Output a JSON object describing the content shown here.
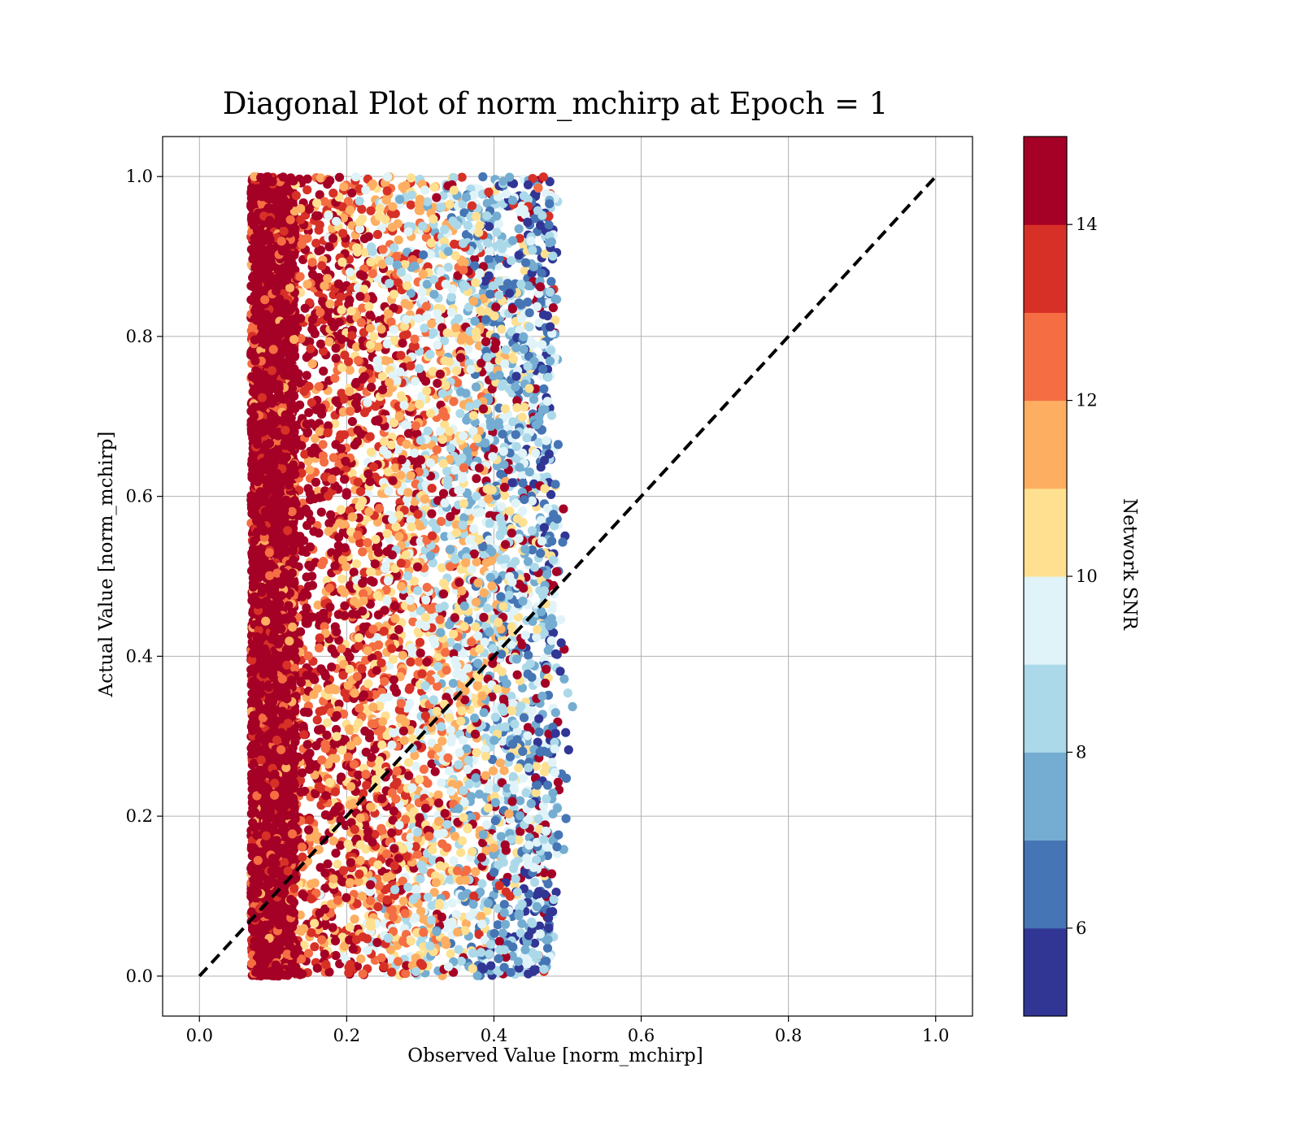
{
  "chart_data": {
    "type": "scatter",
    "title": "Diagonal Plot of norm_mchirp at Epoch = 1",
    "xlabel": "Observed Value [norm_mchirp]",
    "ylabel": "Actual Value [norm_mchirp]",
    "xlim": [
      -0.05,
      1.05
    ],
    "ylim": [
      -0.05,
      1.05
    ],
    "xticks": [
      "0.0",
      "0.2",
      "0.4",
      "0.6",
      "0.8",
      "1.0"
    ],
    "yticks": [
      "0.0",
      "0.2",
      "0.4",
      "0.6",
      "0.8",
      "1.0"
    ],
    "grid": true,
    "reference_line": {
      "x": [
        0.0,
        1.0
      ],
      "y": [
        0.0,
        1.0
      ],
      "style": "dashed",
      "color": "#000000"
    },
    "point_cloud": {
      "x_range": [
        0.07,
        0.51
      ],
      "y_range": [
        0.0,
        1.0
      ],
      "dense_band_x": [
        0.07,
        0.13
      ],
      "dense_band_color_value": 15,
      "color_trend": "high SNR at low observed value, decreasing toward x = 0.5"
    },
    "colorbar": {
      "label": "Network SNR",
      "range": [
        5,
        15
      ],
      "ticks": [
        "6",
        "8",
        "10",
        "12",
        "14"
      ],
      "tick_values": [
        6,
        8,
        10,
        12,
        14
      ],
      "bins": [
        {
          "from": 5,
          "to": 6,
          "color": "#313695"
        },
        {
          "from": 6,
          "to": 7,
          "color": "#4575b4"
        },
        {
          "from": 7,
          "to": 8,
          "color": "#74add1"
        },
        {
          "from": 8,
          "to": 9,
          "color": "#abd9e9"
        },
        {
          "from": 9,
          "to": 10,
          "color": "#e0f3f8"
        },
        {
          "from": 10,
          "to": 11,
          "color": "#fee090"
        },
        {
          "from": 11,
          "to": 12,
          "color": "#fdae61"
        },
        {
          "from": 12,
          "to": 13,
          "color": "#f46d43"
        },
        {
          "from": 13,
          "to": 14,
          "color": "#d73027"
        },
        {
          "from": 14,
          "to": 15,
          "color": "#a50026"
        }
      ]
    }
  }
}
